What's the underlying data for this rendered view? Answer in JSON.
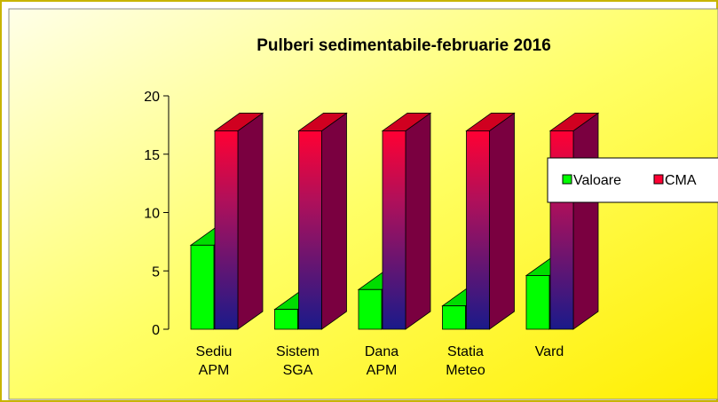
{
  "chart_data": {
    "type": "bar3d",
    "title": "Pulberi sedimentabile-februarie 2016",
    "categories": [
      [
        "Sediu",
        "APM"
      ],
      [
        "Sistem",
        "SGA"
      ],
      [
        "Dana",
        "APM"
      ],
      [
        "Statia",
        "Meteo"
      ],
      [
        "Vard"
      ]
    ],
    "series": [
      {
        "name": "Valoare",
        "color": "#00ff00",
        "values": [
          7.2,
          1.7,
          3.4,
          2.0,
          4.6
        ]
      },
      {
        "name": "CMA",
        "color": "#ff0033",
        "values": [
          17,
          17,
          17,
          17,
          17
        ]
      }
    ],
    "ylim": [
      0,
      20
    ],
    "yticks": [
      0,
      5,
      10,
      15,
      20
    ],
    "legend": "right"
  }
}
